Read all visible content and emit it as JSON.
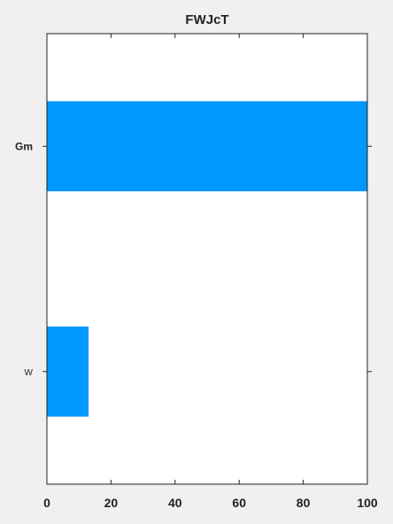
{
  "chart_data": {
    "type": "bar",
    "orientation": "horizontal",
    "title": "FWJcT",
    "xlabel": "",
    "ylabel": "",
    "categories": [
      "Gm",
      "W"
    ],
    "values": [
      100,
      13
    ],
    "xlim": [
      0,
      100
    ],
    "xticks": [
      "0",
      "20",
      "40",
      "60",
      "80",
      "100"
    ],
    "grid": false,
    "bar_color": "#0098ff"
  }
}
